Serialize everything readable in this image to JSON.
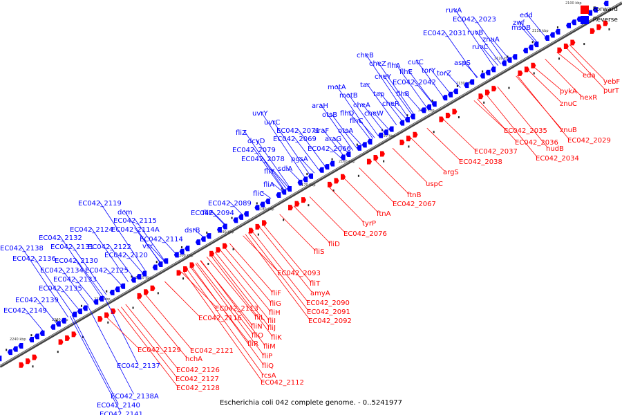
{
  "caption": "Escherichia coli 042 complete genome. - 0..5241977",
  "legend": [
    {
      "label": "Forward",
      "color": "#ff0000"
    },
    {
      "label": "Reverse",
      "color": "#0000ff"
    }
  ],
  "colors": {
    "forward": "#ff0000",
    "reverse": "#0000ff",
    "backbone": "#444444"
  },
  "tick_labels": [
    "2100 kbp",
    "2110 kbp",
    "2120 kbp",
    "2130 kbp",
    "2140 kbp",
    "2150 kbp",
    "2160 kbp",
    "2170 kbp",
    "2180 kbp",
    "2190 kbp",
    "2200 kbp",
    "2210 kbp",
    "2220 kbp",
    "2230 kbp",
    "2240 kbp"
  ],
  "reverse_labels": [
    "ruvA",
    "EC042_2023",
    "edd",
    "msbB",
    "zwf",
    "ruvB",
    "znuA",
    "EC042_2031",
    "ruvC",
    "aspS",
    "cutC",
    "flhA",
    "cheB",
    "cheZ",
    "torY",
    "torZ",
    "EC042_2042",
    "cheY",
    "flhE",
    "tar",
    "motA",
    "tap",
    "flhB",
    "motB",
    "cheR",
    "araH",
    "cheA",
    "otsB",
    "flhD",
    "cheW",
    "uvrY",
    "flhC",
    "uvrC",
    "EC042_2071",
    "fliZ",
    "araF",
    "otsA",
    "dcyD",
    "EC042_2069",
    "araG",
    "EC042_2079",
    "EC042_2066",
    "EC042_2078",
    "pgsA",
    "sdiA",
    "fliY",
    "fliA",
    "fliC",
    "EC042_2089",
    "fliE",
    "EC042_2094",
    "dsrB",
    "EC042_2119",
    "dcm",
    "EC042_2115",
    "EC042_2124",
    "EC042_2114A",
    "EC042_2132",
    "EC042_2114",
    "EC042_2138",
    "EC042_2131",
    "EC042_2122",
    "vsr",
    "EC042_2136",
    "EC042_2130",
    "EC042_2120",
    "EC042_2134",
    "EC042_2125",
    "EC042_2133",
    "EC042_2135",
    "EC042_2139",
    "EC042_2149",
    "EC042_2137",
    "EC042_2138A",
    "EC042_2140",
    "EC042_2141"
  ],
  "forward_labels": [
    "eda",
    "yebF",
    "pykA",
    "hexR",
    "purT",
    "znuC",
    "znuB",
    "EC042_2035",
    "EC042_2029",
    "EC042_2036",
    "EC042_2034",
    "nudB",
    "EC042_2037",
    "EC042_2038",
    "argS",
    "uspC",
    "ftnB",
    "EC042_2067",
    "ftnA",
    "tyrP",
    "EC042_2076",
    "fliD",
    "fliS",
    "EC042_2093",
    "fliT",
    "amyA",
    "EC042_2090",
    "EC042_2091",
    "EC042_2092",
    "fliF",
    "fliG",
    "EC042_2113",
    "fliH",
    "EC042_2116",
    "fliI",
    "fliL",
    "fliJ",
    "fliN",
    "fliK",
    "fliO",
    "fliR",
    "fliM",
    "fliP",
    "fliQ",
    "rcsA",
    "EC042_2112",
    "EC042_2121",
    "EC042_2129",
    "hchA",
    "EC042_2126",
    "EC042_2127",
    "EC042_2128"
  ]
}
